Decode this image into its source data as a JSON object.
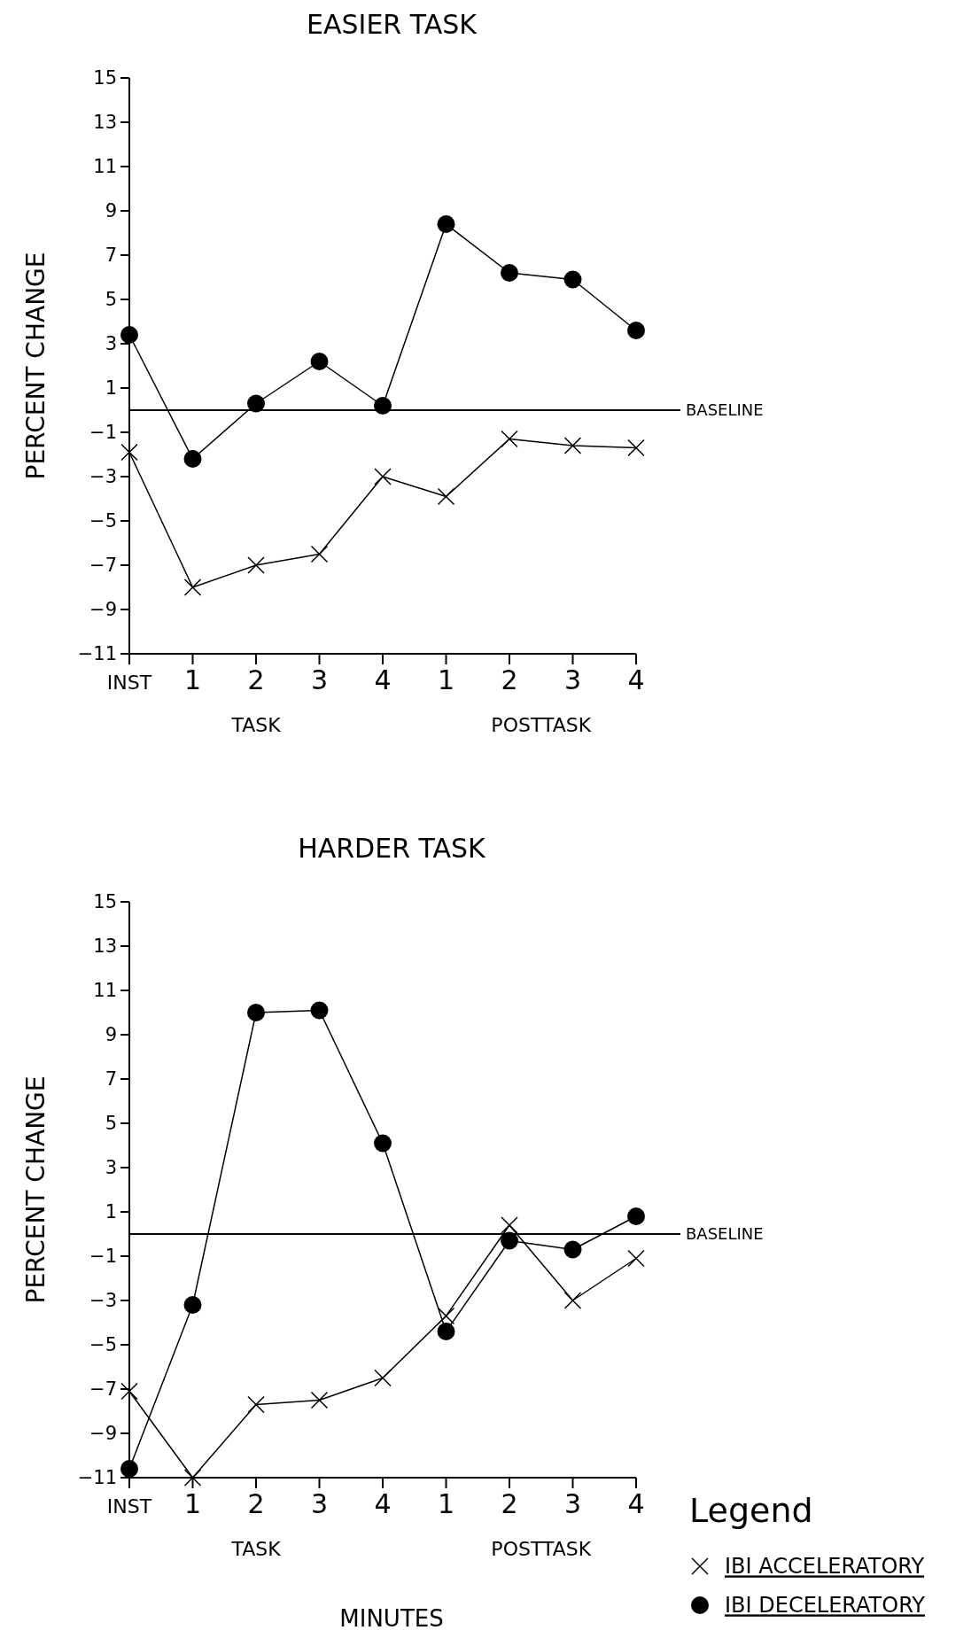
{
  "chart_data": [
    {
      "type": "line",
      "title": "EASIER TASK",
      "ylabel": "PERCENT CHANGE",
      "categories": [
        "INST",
        "1",
        "2",
        "3",
        "4",
        "1",
        "2",
        "3",
        "4"
      ],
      "annotations": [
        "TASK",
        "POSTTASK"
      ],
      "ylim": [
        -11,
        15
      ],
      "yticks": [
        -11,
        -9,
        -7,
        -5,
        -3,
        -1,
        1,
        3,
        5,
        7,
        9,
        11,
        13,
        15
      ],
      "grid": false,
      "legend": false,
      "ref_lines": [
        {
          "axis": "y",
          "value": 0,
          "label": "BASELINE",
          "color": "#000000"
        }
      ],
      "series": [
        {
          "color": "#000000",
          "marker": "cross",
          "values": [
            -1.9,
            -8.0,
            -7.0,
            -6.5,
            -3.0,
            -3.9,
            -1.3,
            -1.6,
            -1.7
          ]
        },
        {
          "color": "#000000",
          "marker": "circle",
          "values": [
            3.4,
            -2.2,
            0.3,
            2.2,
            0.2,
            8.4,
            6.2,
            5.9,
            3.6
          ]
        }
      ]
    },
    {
      "type": "line",
      "title": "HARDER TASK",
      "ylabel": "PERCENT CHANGE",
      "xlabel": "MINUTES",
      "categories": [
        "INST",
        "1",
        "2",
        "3",
        "4",
        "1",
        "2",
        "3",
        "4"
      ],
      "annotations": [
        "TASK",
        "POSTTASK"
      ],
      "ylim": [
        -11,
        15
      ],
      "yticks": [
        -11,
        -9,
        -7,
        -5,
        -3,
        -1,
        1,
        3,
        5,
        7,
        9,
        11,
        13,
        15
      ],
      "grid": false,
      "legend": "bottom right",
      "legend_title": "Legend",
      "ref_lines": [
        {
          "axis": "y",
          "value": 0,
          "label": "BASELINE",
          "color": "#000000"
        }
      ],
      "series": [
        {
          "name": "IBI ACCELERATORY",
          "color": "#000000",
          "marker": "cross",
          "values": [
            -7.1,
            -11,
            -7.7,
            -7.5,
            -6.5,
            -3.7,
            0.4,
            -3.0,
            -1.1
          ]
        },
        {
          "name": "IBI DECELERATORY",
          "color": "#000000",
          "marker": "circle",
          "values": [
            -10.6,
            -3.2,
            10.0,
            10.1,
            4.1,
            -4.4,
            -0.3,
            -0.7,
            0.8
          ]
        }
      ]
    }
  ]
}
